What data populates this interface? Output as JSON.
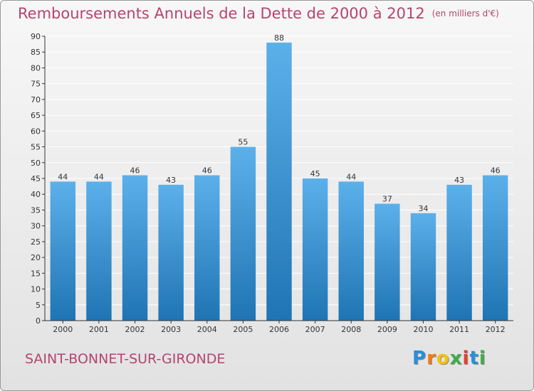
{
  "header": {
    "title": "Remboursements Annuels de la Dette de 2000 à 2012",
    "unit": "(en milliers d'€)"
  },
  "footer": {
    "commune": "SAINT-BONNET-SUR-GIRONDE"
  },
  "logo": {
    "letters": [
      "P",
      "r",
      "o",
      "x",
      "i",
      "t",
      "i"
    ],
    "colors": [
      "#2a8fd8",
      "#f07a1a",
      "#f4c20d",
      "#3fae49",
      "#e8402f",
      "#2a8fd8",
      "#3fae49"
    ]
  },
  "colors": {
    "bar_light": "#5cb0ea",
    "bar_dark": "#1f74b3",
    "grid": "#ffffff",
    "axis": "#333333"
  },
  "chart_data": {
    "type": "bar",
    "categories": [
      "2000",
      "2001",
      "2002",
      "2003",
      "2004",
      "2005",
      "2006",
      "2007",
      "2008",
      "2009",
      "2010",
      "2011",
      "2012"
    ],
    "values": [
      44,
      44,
      46,
      43,
      46,
      55,
      88,
      45,
      44,
      37,
      34,
      43,
      46
    ],
    "data_labels": [
      "44",
      "44",
      "46",
      "43",
      "46",
      "55",
      "88",
      "45",
      "44",
      "37",
      "34",
      "43",
      "46"
    ],
    "ylim": [
      0,
      90
    ],
    "yticks": [
      "0",
      "5",
      "10",
      "15",
      "20",
      "25",
      "30",
      "35",
      "40",
      "45",
      "50",
      "55",
      "60",
      "65",
      "70",
      "75",
      "80",
      "85",
      "90"
    ],
    "grid": true,
    "legend": "none"
  }
}
